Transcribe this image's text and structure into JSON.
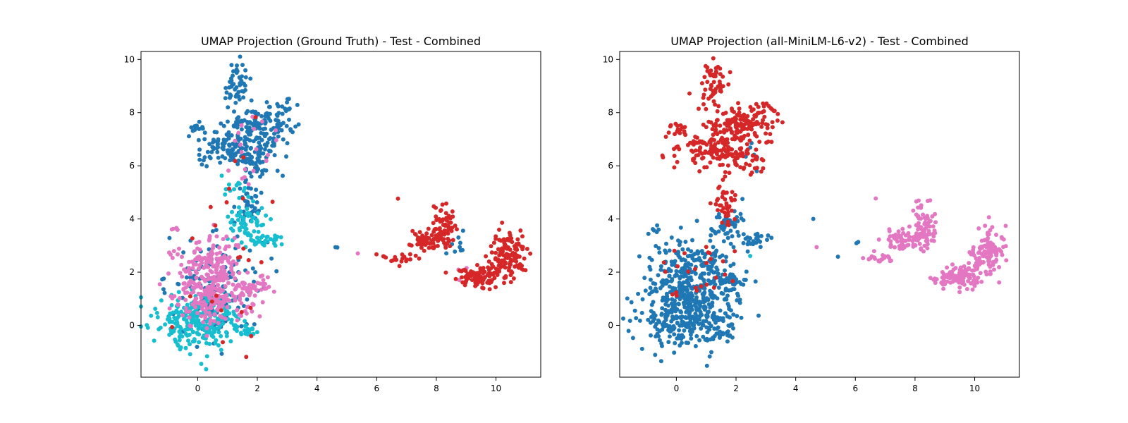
{
  "colors": {
    "blue": "#1f77b4",
    "red": "#d62728",
    "pink": "#e377c2",
    "cyan": "#17becf"
  },
  "chart_data": [
    {
      "type": "scatter",
      "title": "UMAP Projection (Ground Truth) - Test - Combined",
      "xlabel": "",
      "ylabel": "",
      "xlim": [
        -1.9,
        11.5
      ],
      "ylim": [
        -1.95,
        10.3
      ],
      "xticks": [
        0,
        2,
        4,
        6,
        8,
        10
      ],
      "yticks": [
        0,
        2,
        4,
        6,
        8,
        10
      ],
      "grid": false,
      "series": [
        {
          "color_key": "blue",
          "clusters": [
            {
              "cx": 1.3,
              "cy": 9.0,
              "sx": 0.25,
              "sy": 0.45,
              "n": 50
            },
            {
              "cx": 2.1,
              "cy": 7.5,
              "sx": 0.55,
              "sy": 0.35,
              "n": 140
            },
            {
              "cx": 2.9,
              "cy": 8.2,
              "sx": 0.2,
              "sy": 0.15,
              "n": 12
            },
            {
              "cx": 0.0,
              "cy": 7.4,
              "sx": 0.15,
              "sy": 0.1,
              "n": 15
            },
            {
              "cx": 1.0,
              "cy": 6.6,
              "sx": 0.55,
              "sy": 0.3,
              "n": 90
            },
            {
              "cx": 2.0,
              "cy": 6.3,
              "sx": 0.45,
              "sy": 0.35,
              "n": 60
            },
            {
              "cx": 1.7,
              "cy": 4.6,
              "sx": 0.2,
              "sy": 0.55,
              "n": 40
            },
            {
              "cx": 0.6,
              "cy": 1.8,
              "sx": 0.8,
              "sy": 0.8,
              "n": 100
            },
            {
              "cx": 0.5,
              "cy": 0.4,
              "sx": 0.6,
              "sy": 0.5,
              "n": 40
            },
            {
              "cx": 8.5,
              "cy": 3.0,
              "sx": 0.4,
              "sy": 0.3,
              "n": 10
            },
            {
              "cx": 4.6,
              "cy": 3.4,
              "sx": 0.1,
              "sy": 0.6,
              "n": 2
            }
          ]
        },
        {
          "color_key": "cyan",
          "clusters": [
            {
              "cx": 0.1,
              "cy": 0.2,
              "sx": 0.7,
              "sy": 0.55,
              "n": 260
            },
            {
              "cx": 1.7,
              "cy": -0.3,
              "sx": 0.15,
              "sy": 0.15,
              "n": 15
            },
            {
              "cx": 1.7,
              "cy": 3.9,
              "sx": 0.3,
              "sy": 0.4,
              "n": 60
            },
            {
              "cx": 2.4,
              "cy": 3.2,
              "sx": 0.3,
              "sy": 0.15,
              "n": 25
            },
            {
              "cx": 1.3,
              "cy": 5.0,
              "sx": 0.3,
              "sy": 0.4,
              "n": 15
            }
          ]
        },
        {
          "color_key": "pink",
          "clusters": [
            {
              "cx": 0.5,
              "cy": 1.1,
              "sx": 0.65,
              "sy": 0.5,
              "n": 220
            },
            {
              "cx": 0.3,
              "cy": 2.5,
              "sx": 0.6,
              "sy": 0.5,
              "n": 120
            },
            {
              "cx": 1.9,
              "cy": 1.5,
              "sx": 0.35,
              "sy": 0.2,
              "n": 40
            },
            {
              "cx": -0.7,
              "cy": 3.6,
              "sx": 0.1,
              "sy": 0.1,
              "n": 5
            },
            {
              "cx": 2.0,
              "cy": 6.5,
              "sx": 0.6,
              "sy": 0.7,
              "n": 20
            },
            {
              "cx": 5.4,
              "cy": 2.65,
              "sx": 0.05,
              "sy": 0.05,
              "n": 1
            },
            {
              "cx": 9.0,
              "cy": 2.0,
              "sx": 0.3,
              "sy": 0.2,
              "n": 4
            }
          ]
        },
        {
          "color_key": "red",
          "clusters": [
            {
              "cx": 6.8,
              "cy": 2.5,
              "sx": 0.3,
              "sy": 0.1,
              "n": 20
            },
            {
              "cx": 7.7,
              "cy": 3.2,
              "sx": 0.4,
              "sy": 0.2,
              "n": 60
            },
            {
              "cx": 8.3,
              "cy": 3.7,
              "sx": 0.2,
              "sy": 0.45,
              "n": 70
            },
            {
              "cx": 9.5,
              "cy": 1.8,
              "sx": 0.45,
              "sy": 0.2,
              "n": 100
            },
            {
              "cx": 10.4,
              "cy": 2.7,
              "sx": 0.3,
              "sy": 0.4,
              "n": 120
            },
            {
              "cx": 6.7,
              "cy": 4.75,
              "sx": 0.03,
              "sy": 0.03,
              "n": 1
            },
            {
              "cx": 1.2,
              "cy": 4.0,
              "sx": 0.6,
              "sy": 2.0,
              "n": 15
            },
            {
              "cx": 0.5,
              "cy": 1.5,
              "sx": 0.8,
              "sy": 1.0,
              "n": 10
            }
          ]
        }
      ]
    },
    {
      "type": "scatter",
      "title": "UMAP Projection (all-MiniLM-L6-v2) - Test - Combined",
      "xlabel": "",
      "ylabel": "",
      "xlim": [
        -1.9,
        11.5
      ],
      "ylim": [
        -1.95,
        10.3
      ],
      "xticks": [
        0,
        2,
        4,
        6,
        8,
        10
      ],
      "yticks": [
        0,
        2,
        4,
        6,
        8,
        10
      ],
      "grid": false,
      "series": [
        {
          "color_key": "blue",
          "clusters": [
            {
              "cx": 0.4,
              "cy": 0.6,
              "sx": 0.75,
              "sy": 0.7,
              "n": 420
            },
            {
              "cx": 0.5,
              "cy": 2.2,
              "sx": 0.7,
              "sy": 0.6,
              "n": 160
            },
            {
              "cx": 1.7,
              "cy": 1.6,
              "sx": 0.35,
              "sy": 0.3,
              "n": 40
            },
            {
              "cx": 1.6,
              "cy": -0.3,
              "sx": 0.2,
              "sy": 0.15,
              "n": 15
            },
            {
              "cx": 1.7,
              "cy": 3.9,
              "sx": 0.3,
              "sy": 0.35,
              "n": 50
            },
            {
              "cx": 2.5,
              "cy": 3.2,
              "sx": 0.3,
              "sy": 0.15,
              "n": 25
            },
            {
              "cx": -0.7,
              "cy": 3.6,
              "sx": 0.1,
              "sy": 0.1,
              "n": 5
            },
            {
              "cx": 2.6,
              "cy": 6.2,
              "sx": 0.2,
              "sy": 0.3,
              "n": 6
            },
            {
              "cx": 6.1,
              "cy": 3.1,
              "sx": 0.05,
              "sy": 0.05,
              "n": 2
            },
            {
              "cx": 4.6,
              "cy": 4.0,
              "sx": 0.03,
              "sy": 0.03,
              "n": 1
            },
            {
              "cx": 5.4,
              "cy": 2.65,
              "sx": 0.03,
              "sy": 0.03,
              "n": 1
            }
          ]
        },
        {
          "color_key": "red",
          "clusters": [
            {
              "cx": 1.3,
              "cy": 9.0,
              "sx": 0.25,
              "sy": 0.45,
              "n": 50
            },
            {
              "cx": 2.1,
              "cy": 7.5,
              "sx": 0.55,
              "sy": 0.35,
              "n": 150
            },
            {
              "cx": 2.9,
              "cy": 8.2,
              "sx": 0.2,
              "sy": 0.15,
              "n": 12
            },
            {
              "cx": 0.0,
              "cy": 7.4,
              "sx": 0.15,
              "sy": 0.1,
              "n": 15
            },
            {
              "cx": 1.0,
              "cy": 6.6,
              "sx": 0.55,
              "sy": 0.3,
              "n": 90
            },
            {
              "cx": 2.0,
              "cy": 6.3,
              "sx": 0.45,
              "sy": 0.35,
              "n": 70
            },
            {
              "cx": 1.6,
              "cy": 4.6,
              "sx": 0.2,
              "sy": 0.5,
              "n": 40
            },
            {
              "cx": 0.8,
              "cy": 2.0,
              "sx": 0.6,
              "sy": 0.6,
              "n": 25
            }
          ]
        },
        {
          "color_key": "pink",
          "clusters": [
            {
              "cx": 6.8,
              "cy": 2.5,
              "sx": 0.3,
              "sy": 0.1,
              "n": 20
            },
            {
              "cx": 7.7,
              "cy": 3.2,
              "sx": 0.4,
              "sy": 0.2,
              "n": 60
            },
            {
              "cx": 8.3,
              "cy": 3.7,
              "sx": 0.2,
              "sy": 0.45,
              "n": 70
            },
            {
              "cx": 9.5,
              "cy": 1.8,
              "sx": 0.45,
              "sy": 0.2,
              "n": 100
            },
            {
              "cx": 10.4,
              "cy": 2.7,
              "sx": 0.3,
              "sy": 0.4,
              "n": 120
            },
            {
              "cx": 6.7,
              "cy": 4.75,
              "sx": 0.03,
              "sy": 0.03,
              "n": 1
            },
            {
              "cx": 4.7,
              "cy": 2.9,
              "sx": 0.03,
              "sy": 0.03,
              "n": 1
            }
          ]
        },
        {
          "color_key": "cyan",
          "clusters": [
            {
              "cx": 2.5,
              "cy": 2.55,
              "sx": 0.03,
              "sy": 0.03,
              "n": 1
            }
          ]
        }
      ]
    }
  ]
}
